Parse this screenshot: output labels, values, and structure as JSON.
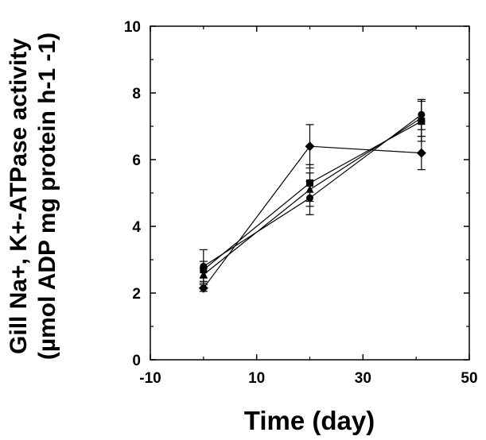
{
  "chart_data": {
    "type": "line",
    "title": "",
    "xlabel": "Time (day)",
    "ylabel": {
      "line1": "Gill Na+, K+-ATPase activity",
      "line2": "(µmol ADP mg protein h-1 -1)"
    },
    "xlim": [
      -10,
      50
    ],
    "ylim": [
      0,
      10
    ],
    "x_ticks": [
      "-10",
      "10",
      "30",
      "50"
    ],
    "y_ticks": [
      "0",
      "2",
      "4",
      "6",
      "8",
      "10"
    ],
    "grid": false,
    "legend": "none",
    "color": "#000000",
    "series": [
      {
        "marker": "diamond",
        "x": [
          0,
          20,
          41
        ],
        "y": [
          2.15,
          6.4,
          6.2
        ],
        "err": [
          0.1,
          0.65,
          0.5
        ]
      },
      {
        "marker": "square",
        "x": [
          0,
          20,
          41
        ],
        "y": [
          2.7,
          5.3,
          7.15
        ],
        "err": [
          0.25,
          0.55,
          0.6
        ]
      },
      {
        "marker": "triangle",
        "x": [
          0,
          20,
          41
        ],
        "y": [
          2.55,
          5.1,
          7.25
        ],
        "err": [
          0.2,
          0.5,
          0.55
        ]
      },
      {
        "marker": "circle",
        "x": [
          0,
          20,
          41
        ],
        "y": [
          2.8,
          4.85,
          7.35
        ],
        "err": [
          0.5,
          0.5,
          0.45
        ]
      }
    ]
  }
}
